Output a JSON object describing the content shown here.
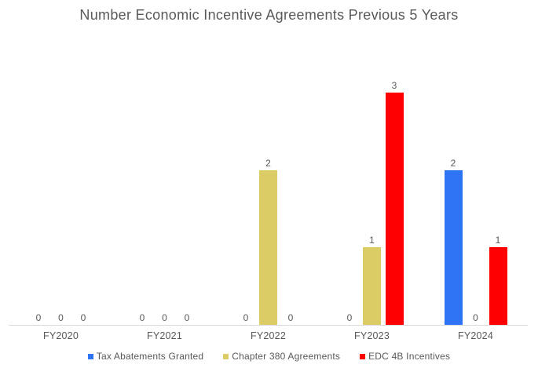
{
  "chart_data": {
    "type": "bar",
    "title": "Number Economic Incentive Agreements Previous 5 Years",
    "categories": [
      "FY2020",
      "FY2021",
      "FY2022",
      "FY2023",
      "FY2024"
    ],
    "series": [
      {
        "name": "Tax Abatements Granted",
        "color": "#2e74f5",
        "values": [
          0,
          0,
          0,
          0,
          2
        ]
      },
      {
        "name": "Chapter 380 Agreements",
        "color": "#dbcc65",
        "values": [
          0,
          0,
          2,
          1,
          0
        ]
      },
      {
        "name": "EDC 4B Incentives",
        "color": "#fe0000",
        "values": [
          0,
          0,
          0,
          3,
          1
        ]
      }
    ],
    "xlabel": "",
    "ylabel": "",
    "ylim": [
      0,
      3
    ],
    "grid": false,
    "data_labels": true,
    "legend_position": "bottom",
    "colors": {
      "text": "#595959",
      "axis_line": "#d9d9d9",
      "background": "#ffffff"
    }
  }
}
